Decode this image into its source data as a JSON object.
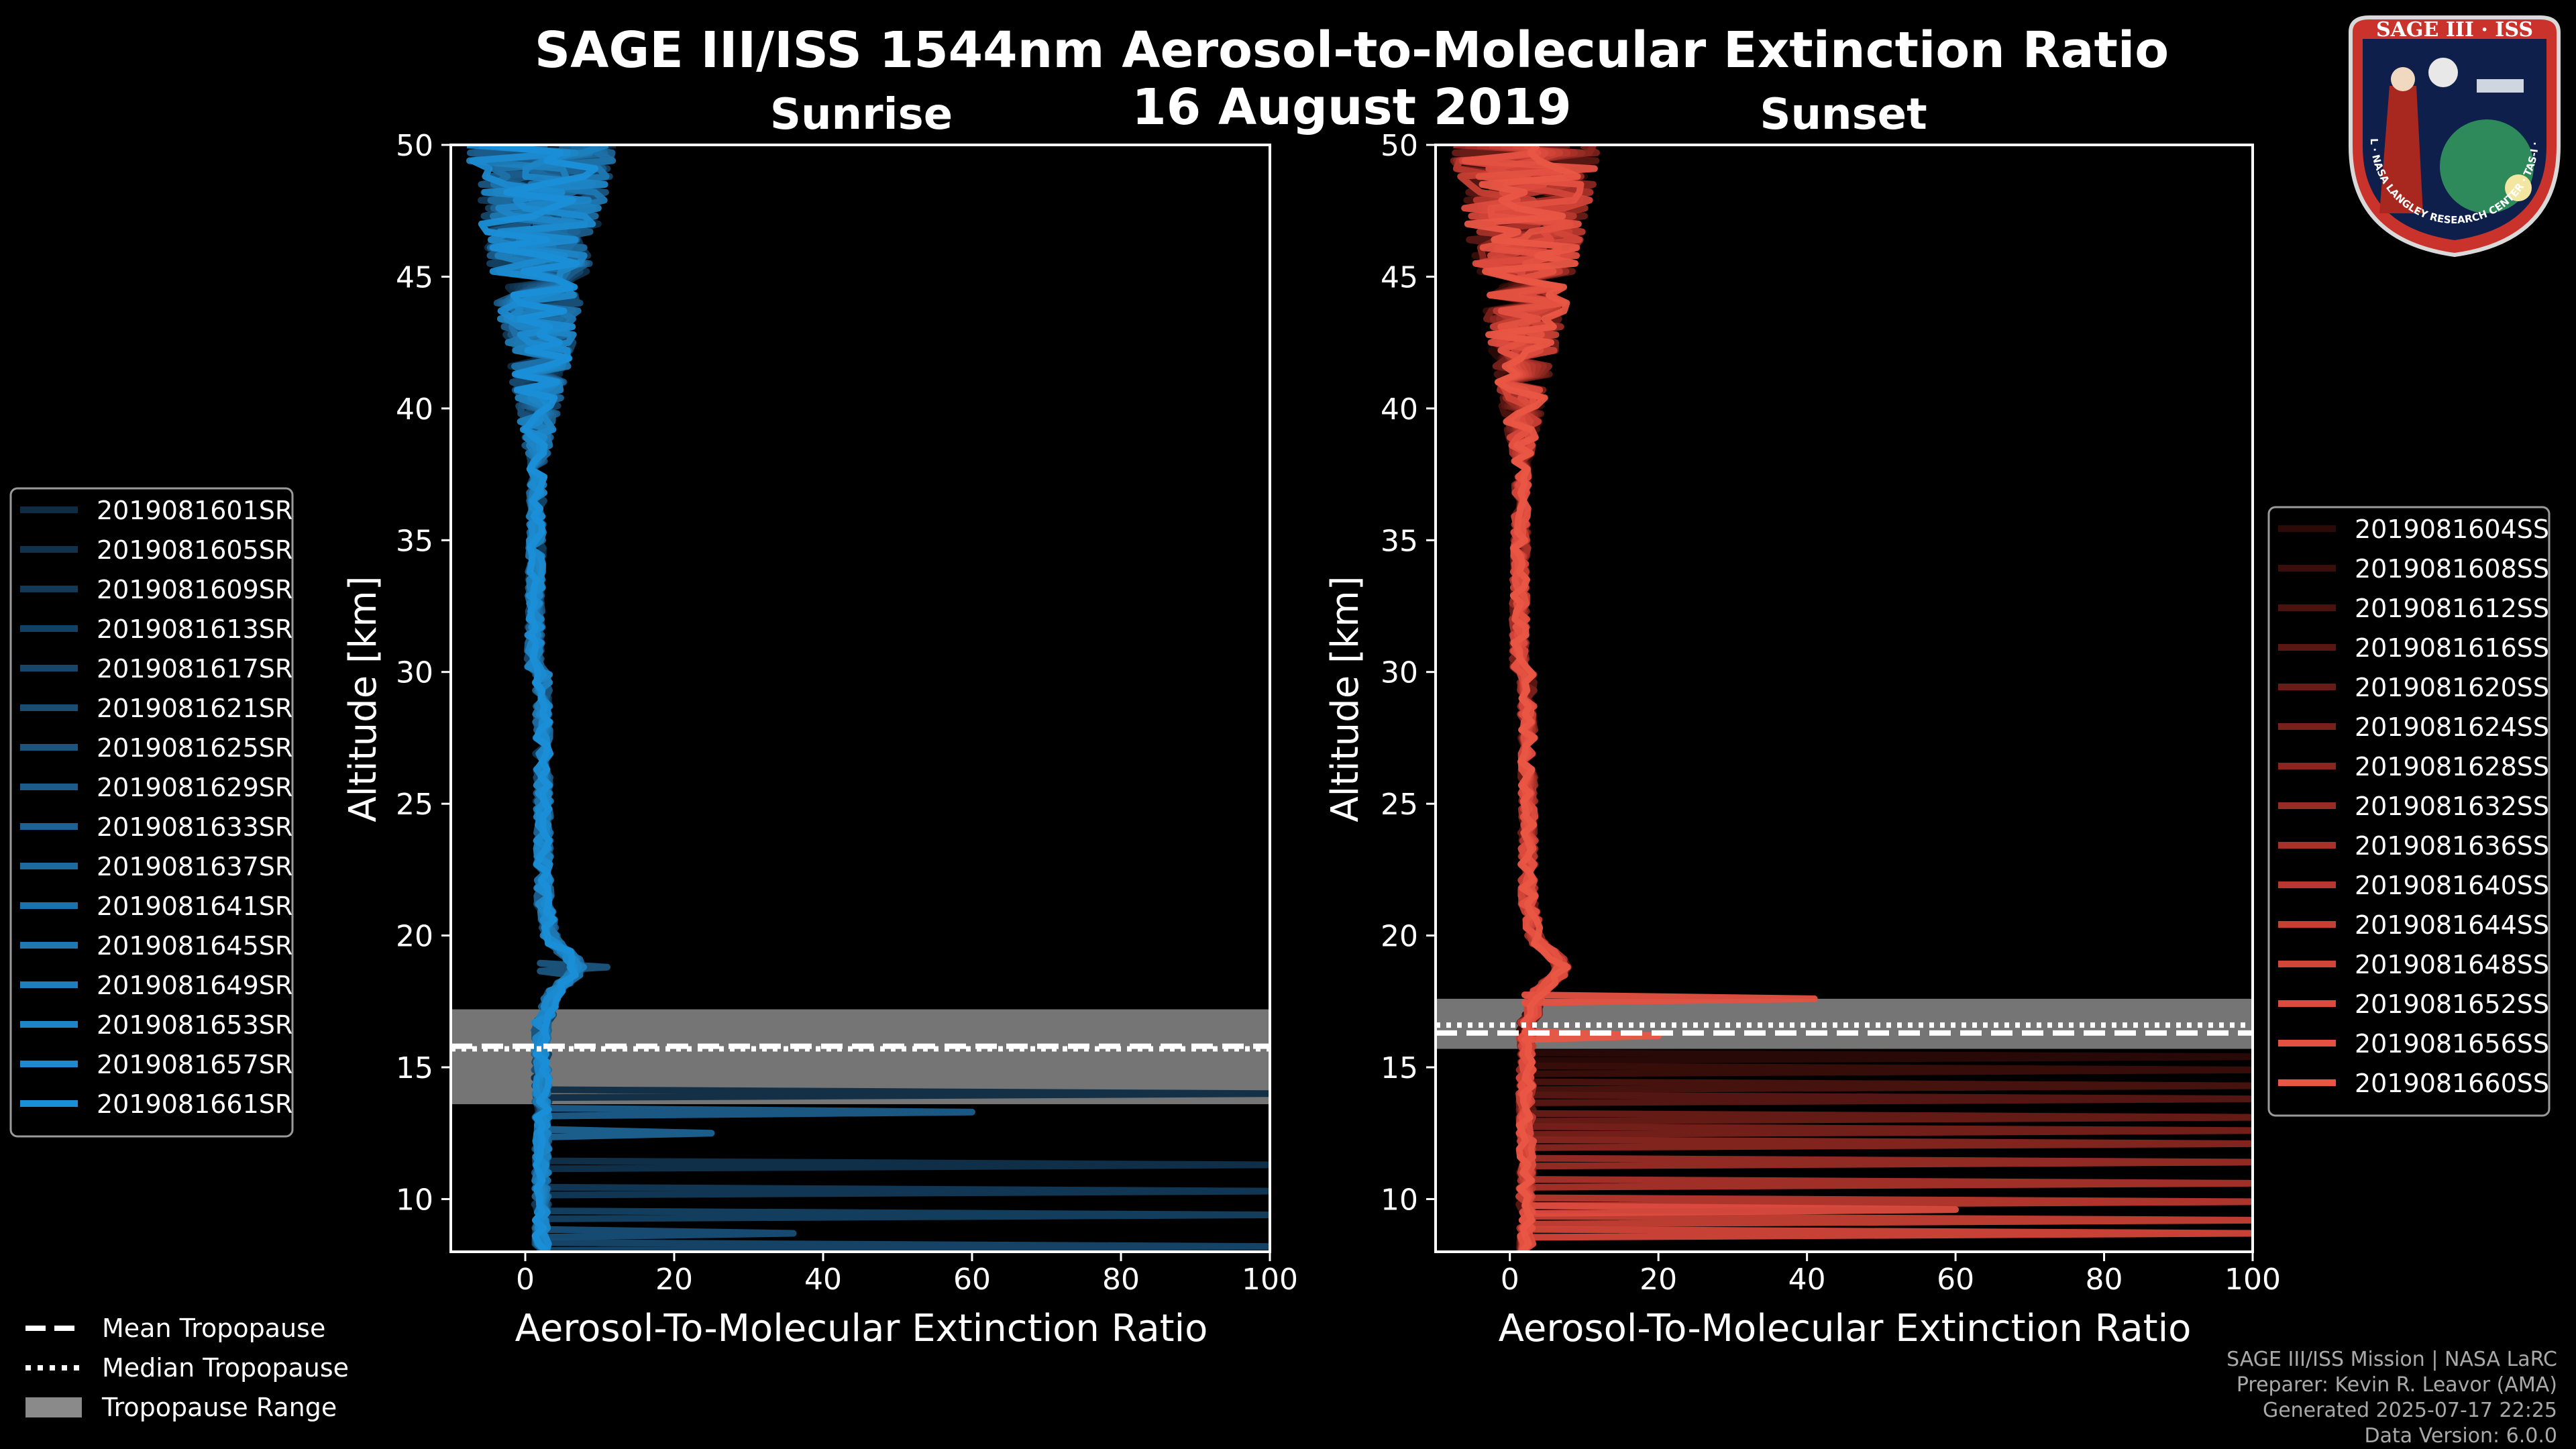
{
  "header": {
    "title": "SAGE III/ISS 1544nm Aerosol-to-Molecular Extinction Ratio",
    "date": "16 August 2019"
  },
  "logo": {
    "top_text": "SAGE III · ISS",
    "ring_text": "BALL · NASA LANGLEY RESEARCH CENTER · TAS-I · ESA"
  },
  "colors": {
    "background": "#000000",
    "sunrise": "#1b8ad4",
    "sunset": "#e8533f",
    "tropo_band": "#8a8a8a"
  },
  "tropo_legend": {
    "mean": "Mean Tropopause",
    "median": "Median Tropopause",
    "range": "Tropopause Range"
  },
  "footer": {
    "line1": "SAGE III/ISS Mission | NASA LaRC",
    "line2": "Preparer: Kevin R. Leavor (AMA)",
    "line3": "Generated 2025-07-17 22:25",
    "line4": "Data Version: 6.0.0"
  },
  "chart_data": [
    {
      "type": "line",
      "title": "Sunrise",
      "xlabel": "Aerosol-To-Molecular Extinction Ratio",
      "ylabel": "Altitude [km]",
      "xlim": [
        -10,
        100
      ],
      "ylim": [
        8,
        50
      ],
      "xticks": [
        0,
        20,
        40,
        60,
        80,
        100
      ],
      "yticks": [
        10,
        15,
        20,
        25,
        30,
        35,
        40,
        45,
        50
      ],
      "grid": false,
      "legend_position": "left",
      "tropopause": {
        "mean": 15.8,
        "median": 15.7,
        "min": 13.6,
        "max": 17.2
      },
      "series": [
        "2019081601SR",
        "2019081605SR",
        "2019081609SR",
        "2019081613SR",
        "2019081617SR",
        "2019081621SR",
        "2019081625SR",
        "2019081629SR",
        "2019081633SR",
        "2019081637SR",
        "2019081641SR",
        "2019081645SR",
        "2019081649SR",
        "2019081653SR",
        "2019081657SR",
        "2019081661SR"
      ],
      "colors": [
        "#0e2c43",
        "#10324d",
        "#123957",
        "#144061",
        "#16476b",
        "#184e76",
        "#1a5580",
        "#1b5c8a",
        "#1c6394",
        "#1d6a9e",
        "#1d71a8",
        "#1e78b2",
        "#1e7fbc",
        "#1e85c6",
        "#1c8ad0",
        "#1a8fd8"
      ],
      "spikes": [
        [
          14.0,
          100
        ],
        [
          11.3,
          100
        ],
        [
          10.3,
          100
        ],
        [
          9.4,
          100
        ],
        [
          8.2,
          100
        ],
        [
          8.7,
          36
        ],
        [
          18.8,
          11
        ],
        [
          13.3,
          60
        ],
        [
          12.5,
          25
        ]
      ]
    },
    {
      "type": "line",
      "title": "Sunset",
      "xlabel": "Aerosol-To-Molecular Extinction Ratio",
      "ylabel": "Altitude [km]",
      "xlim": [
        -10,
        100
      ],
      "ylim": [
        8,
        50
      ],
      "xticks": [
        0,
        20,
        40,
        60,
        80,
        100
      ],
      "yticks": [
        10,
        15,
        20,
        25,
        30,
        35,
        40,
        45,
        50
      ],
      "grid": false,
      "legend_position": "right",
      "tropopause": {
        "mean": 16.3,
        "median": 16.6,
        "min": 15.7,
        "max": 17.6
      },
      "series": [
        "2019081604SS",
        "2019081608SS",
        "2019081612SS",
        "2019081616SS",
        "2019081620SS",
        "2019081624SS",
        "2019081628SS",
        "2019081632SS",
        "2019081636SS",
        "2019081640SS",
        "2019081644SS",
        "2019081648SS",
        "2019081652SS",
        "2019081656SS",
        "2019081660SS"
      ],
      "colors": [
        "#2b0a08",
        "#3a0e0b",
        "#4a130f",
        "#591713",
        "#691c17",
        "#78211b",
        "#88261f",
        "#982c24",
        "#a83229",
        "#b7382e",
        "#c53f33",
        "#d24539",
        "#dc4b3e",
        "#e45141",
        "#ea5645"
      ],
      "spikes": [
        [
          15.4,
          100
        ],
        [
          14.9,
          100
        ],
        [
          14.3,
          100
        ],
        [
          13.8,
          100
        ],
        [
          13.1,
          100
        ],
        [
          12.6,
          100
        ],
        [
          12.1,
          100
        ],
        [
          11.4,
          100
        ],
        [
          10.6,
          100
        ],
        [
          9.9,
          100
        ],
        [
          9.2,
          100
        ],
        [
          8.7,
          100
        ],
        [
          9.6,
          60
        ],
        [
          17.6,
          41
        ],
        [
          16.2,
          20
        ]
      ]
    }
  ]
}
